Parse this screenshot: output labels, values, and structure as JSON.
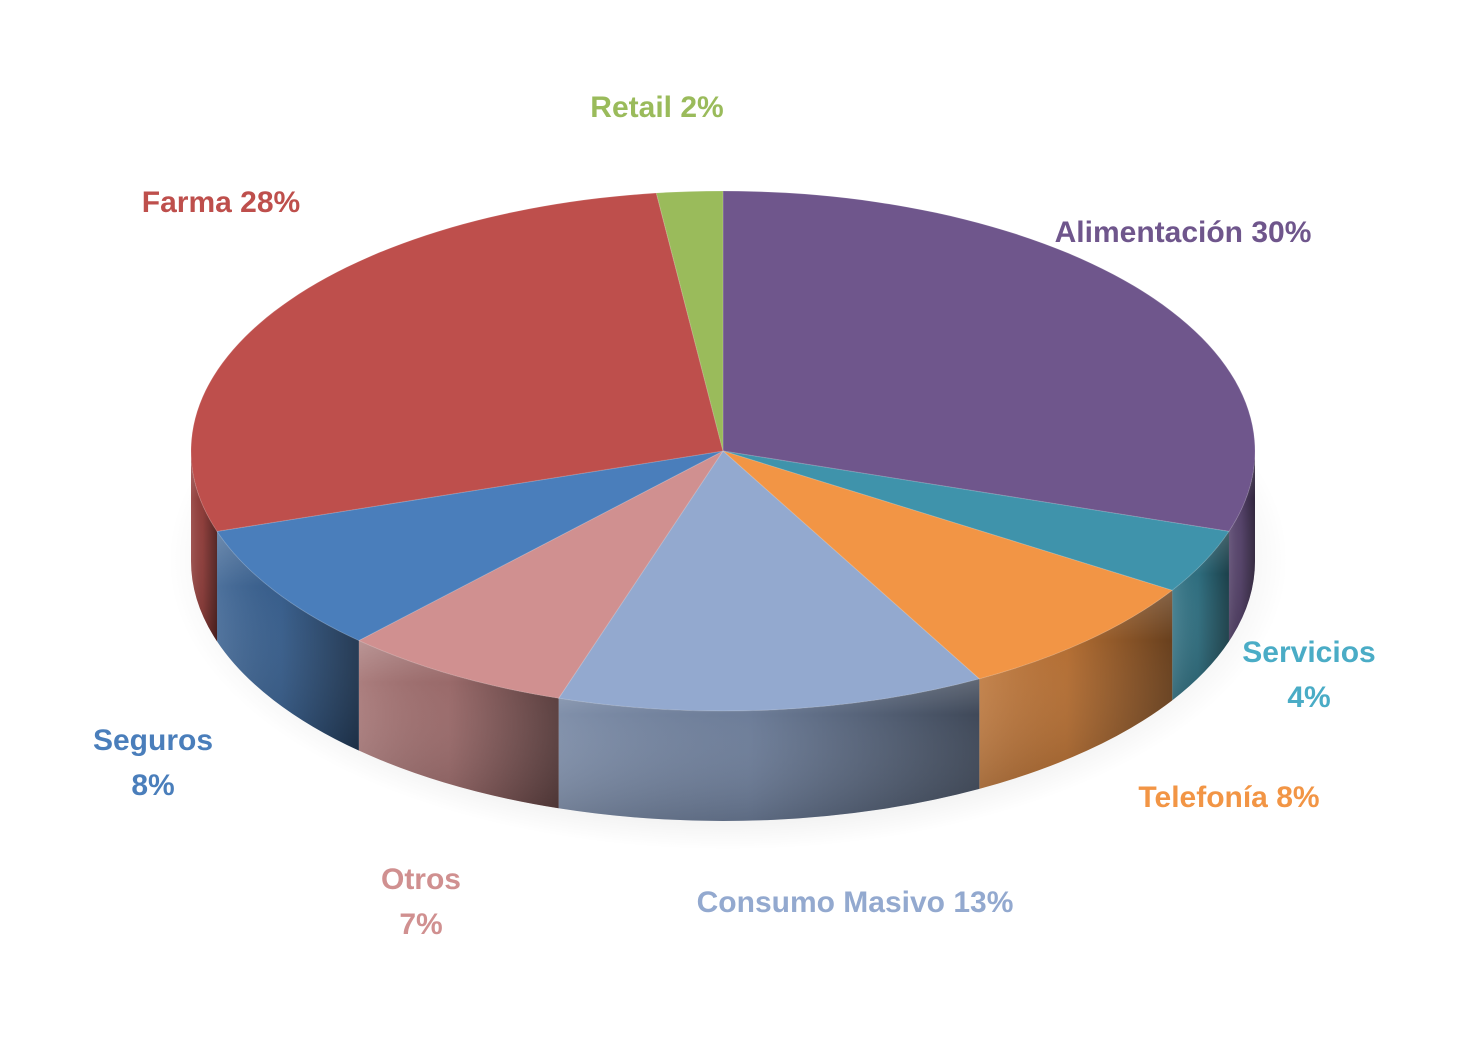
{
  "chart_data": {
    "type": "pie",
    "categories": [
      "Alimentación",
      "Servicios",
      "Telefonía",
      "Consumo Masivo",
      "Otros",
      "Seguros",
      "Farma",
      "Retail"
    ],
    "values": [
      30,
      4,
      8,
      13,
      7,
      8,
      28,
      2
    ],
    "labels": [
      {
        "name": "Alimentación",
        "value": "30%",
        "lines": [
          "Alimentación 30%"
        ]
      },
      {
        "name": "Servicios",
        "value": "4%",
        "lines": [
          "Servicios",
          "4%"
        ]
      },
      {
        "name": "Telefonía",
        "value": "8%",
        "lines": [
          "Telefonía 8%"
        ]
      },
      {
        "name": "Consumo Masivo",
        "value": "13%",
        "lines": [
          "Consumo Masivo 13%"
        ]
      },
      {
        "name": "Otros",
        "value": "7%",
        "lines": [
          "Otros",
          "7%"
        ]
      },
      {
        "name": "Seguros",
        "value": "8%",
        "lines": [
          "Seguros",
          "8%"
        ]
      },
      {
        "name": "Farma",
        "value": "28%",
        "lines": [
          "Farma 28%"
        ]
      },
      {
        "name": "Retail",
        "value": "2%",
        "lines": [
          "Retail 2%"
        ]
      }
    ],
    "colors": [
      "#6F568C",
      "#3F93AB",
      "#F29545",
      "#93A9CF",
      "#D09090",
      "#4A7EBB",
      "#BE4F4C",
      "#9ABB5B"
    ],
    "label_colors": [
      "#6F568C",
      "#4AACC6",
      "#F29545",
      "#93A9CF",
      "#D09090",
      "#4A7EBB",
      "#BE4F4C",
      "#9ABB5B"
    ],
    "title": "",
    "legend": "none",
    "style": "3d-pie"
  }
}
